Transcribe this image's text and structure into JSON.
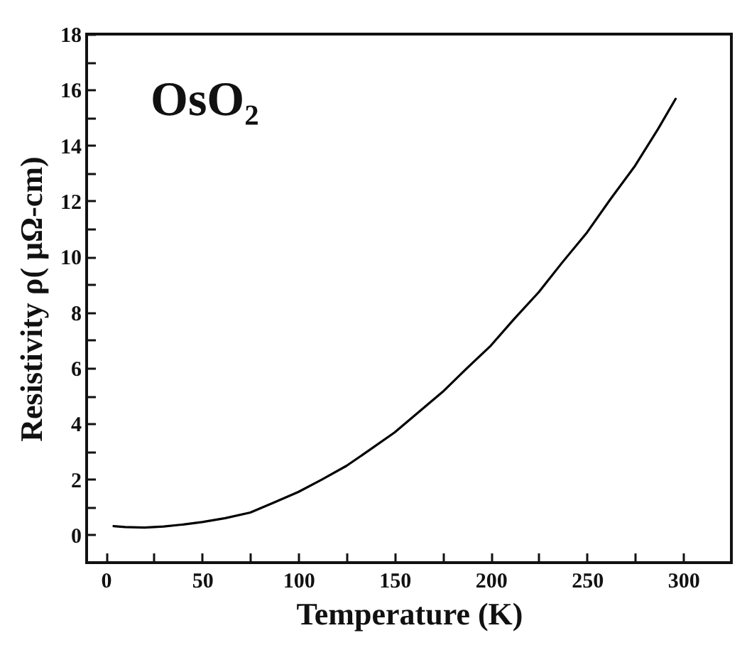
{
  "chart_data": {
    "type": "line",
    "xlabel": "Temperature (K)",
    "ylabel": "Resistivity ρ( μΩ-cm)",
    "annotations": [
      "OsO₂"
    ],
    "x": [
      4,
      10,
      20,
      30,
      40,
      50,
      62,
      75,
      87,
      100,
      112,
      125,
      137,
      150,
      162,
      175,
      187,
      200,
      212,
      225,
      237,
      250,
      262,
      275,
      287,
      296
    ],
    "series": [
      {
        "color": "#000000",
        "values": [
          0.31,
          0.28,
          0.26,
          0.3,
          0.37,
          0.46,
          0.6,
          0.8,
          1.15,
          1.54,
          1.98,
          2.48,
          3.05,
          3.68,
          4.38,
          5.14,
          5.95,
          6.8,
          7.75,
          8.73,
          9.78,
          10.87,
          12.05,
          13.27,
          14.6,
          15.67
        ]
      }
    ],
    "xlim": [
      -10,
      325
    ],
    "ylim": [
      -1,
      18
    ],
    "xticks": [
      0,
      {
        "value": 25,
        "label": null
      },
      50,
      {
        "value": 75,
        "label": null
      },
      100,
      {
        "value": 125,
        "label": null
      },
      150,
      {
        "value": 175,
        "label": null
      },
      200,
      {
        "value": 225,
        "label": null
      },
      250,
      {
        "value": 275,
        "label": null
      },
      300
    ],
    "yticks": [
      0,
      {
        "value": 1,
        "label": null
      },
      2,
      {
        "value": 3,
        "label": null
      },
      4,
      {
        "value": 5,
        "label": null
      },
      6,
      {
        "value": 7,
        "label": null
      },
      8,
      {
        "value": 9,
        "label": null
      },
      10,
      {
        "value": 11,
        "label": null
      },
      12,
      {
        "value": 13,
        "label": null
      },
      14,
      {
        "value": 15,
        "label": null
      },
      16,
      {
        "value": 17,
        "label": null
      },
      18
    ],
    "grid": false,
    "marker": "none",
    "line_style": "solid"
  }
}
